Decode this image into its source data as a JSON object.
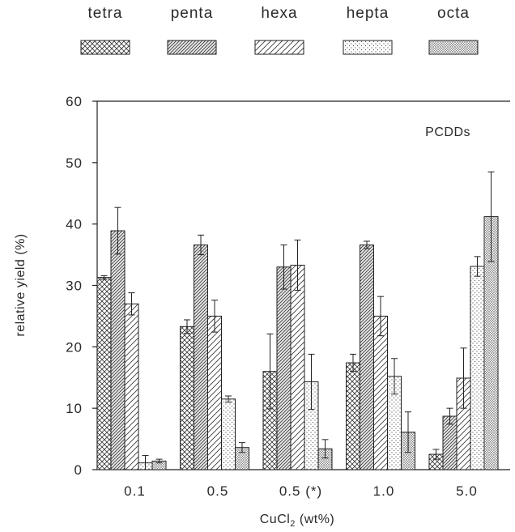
{
  "chart_data": {
    "type": "bar",
    "annotation": "PCDDs",
    "xlabel_main": "CuCl",
    "xlabel_sub": "2",
    "xlabel_tail": " (wt%)",
    "ylabel": "relative yield (%)",
    "ylim": [
      0,
      60
    ],
    "yticks": [
      0,
      10,
      20,
      30,
      40,
      50,
      60
    ],
    "categories": [
      "0.1",
      "0.5",
      "0.5 (*)",
      "1.0",
      "5.0"
    ],
    "series": [
      {
        "name": "tetra",
        "pattern": "crosshatch",
        "values": [
          31.3,
          23.3,
          16.0,
          17.4,
          2.5
        ],
        "errors": [
          0.3,
          1.1,
          6.1,
          1.4,
          0.8
        ]
      },
      {
        "name": "penta",
        "pattern": "dense-diagonal",
        "values": [
          38.9,
          36.6,
          33.0,
          36.6,
          8.7
        ],
        "errors": [
          3.8,
          1.6,
          3.6,
          0.6,
          1.3
        ]
      },
      {
        "name": "hexa",
        "pattern": "sparse-diagonal",
        "values": [
          27.0,
          25.0,
          33.3,
          25.0,
          14.9
        ],
        "errors": [
          1.8,
          2.6,
          4.1,
          3.2,
          4.9
        ]
      },
      {
        "name": "hepta",
        "pattern": "dots",
        "values": [
          1.1,
          11.5,
          14.3,
          15.2,
          33.1
        ],
        "errors": [
          1.2,
          0.5,
          4.5,
          2.9,
          1.6
        ]
      },
      {
        "name": "octa",
        "pattern": "dense-dots",
        "values": [
          1.4,
          3.6,
          3.4,
          6.1,
          41.2
        ],
        "errors": [
          0.3,
          0.8,
          1.5,
          3.3,
          7.3
        ]
      }
    ],
    "grid": false,
    "legend_position": "top"
  }
}
